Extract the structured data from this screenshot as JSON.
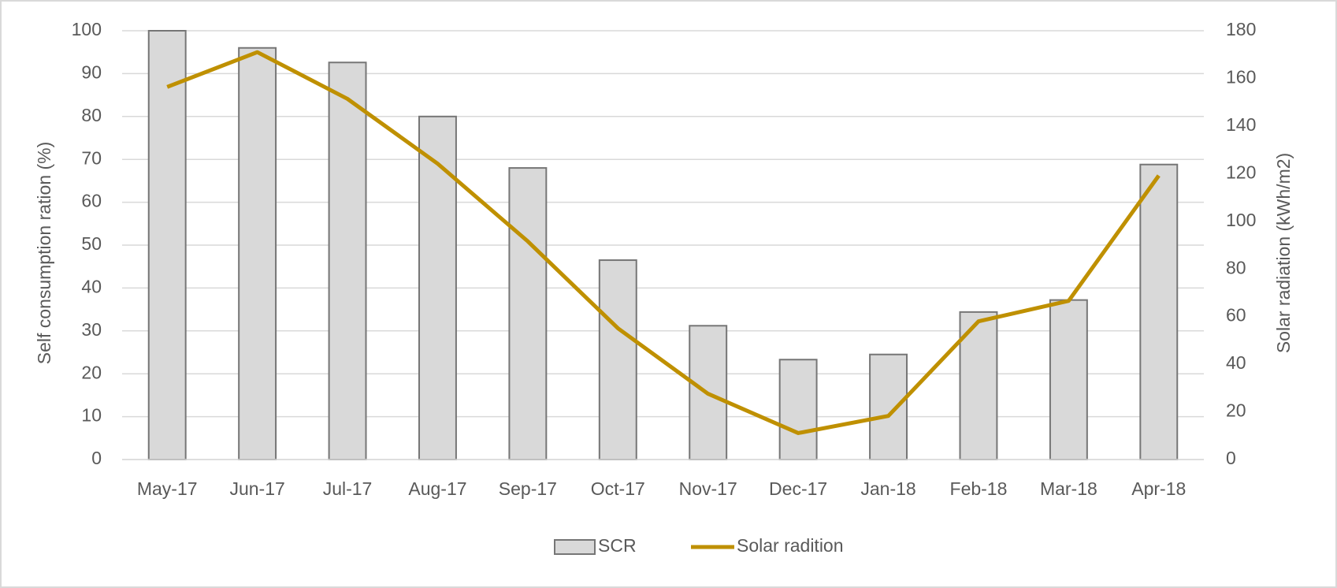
{
  "chart_data": {
    "type": "bar",
    "categories": [
      "May-17",
      "Jun-17",
      "Jul-17",
      "Aug-17",
      "Sep-17",
      "Oct-17",
      "Nov-17",
      "Dec-17",
      "Jan-18",
      "Feb-18",
      "Mar-18",
      "Apr-18"
    ],
    "series": [
      {
        "name": "SCR",
        "type": "bar",
        "color": "#d9d9d9",
        "values": [
          100,
          96,
          92.6,
          80,
          68,
          46.5,
          31.2,
          23.3,
          24.5,
          34.4,
          37.2,
          68.8
        ]
      },
      {
        "name": "Solar radition",
        "type": "line",
        "axis": "y2",
        "color": "#bf9000",
        "values": [
          156.4,
          171,
          151.4,
          124.2,
          91.6,
          55.1,
          27.6,
          11.1,
          18.3,
          58,
          66.6,
          119.2
        ]
      }
    ],
    "ylabel": "Self consumption ration (%)",
    "y2label": "Solar radiation (kWh/m2)",
    "ylim": [
      0,
      100
    ],
    "yticks": [
      0,
      10,
      20,
      30,
      40,
      50,
      60,
      70,
      80,
      90,
      100
    ],
    "y2lim": [
      0,
      180
    ],
    "y2ticks": [
      0,
      20,
      40,
      60,
      80,
      100,
      120,
      140,
      160,
      180
    ],
    "grid": true,
    "legend": "bottom"
  }
}
